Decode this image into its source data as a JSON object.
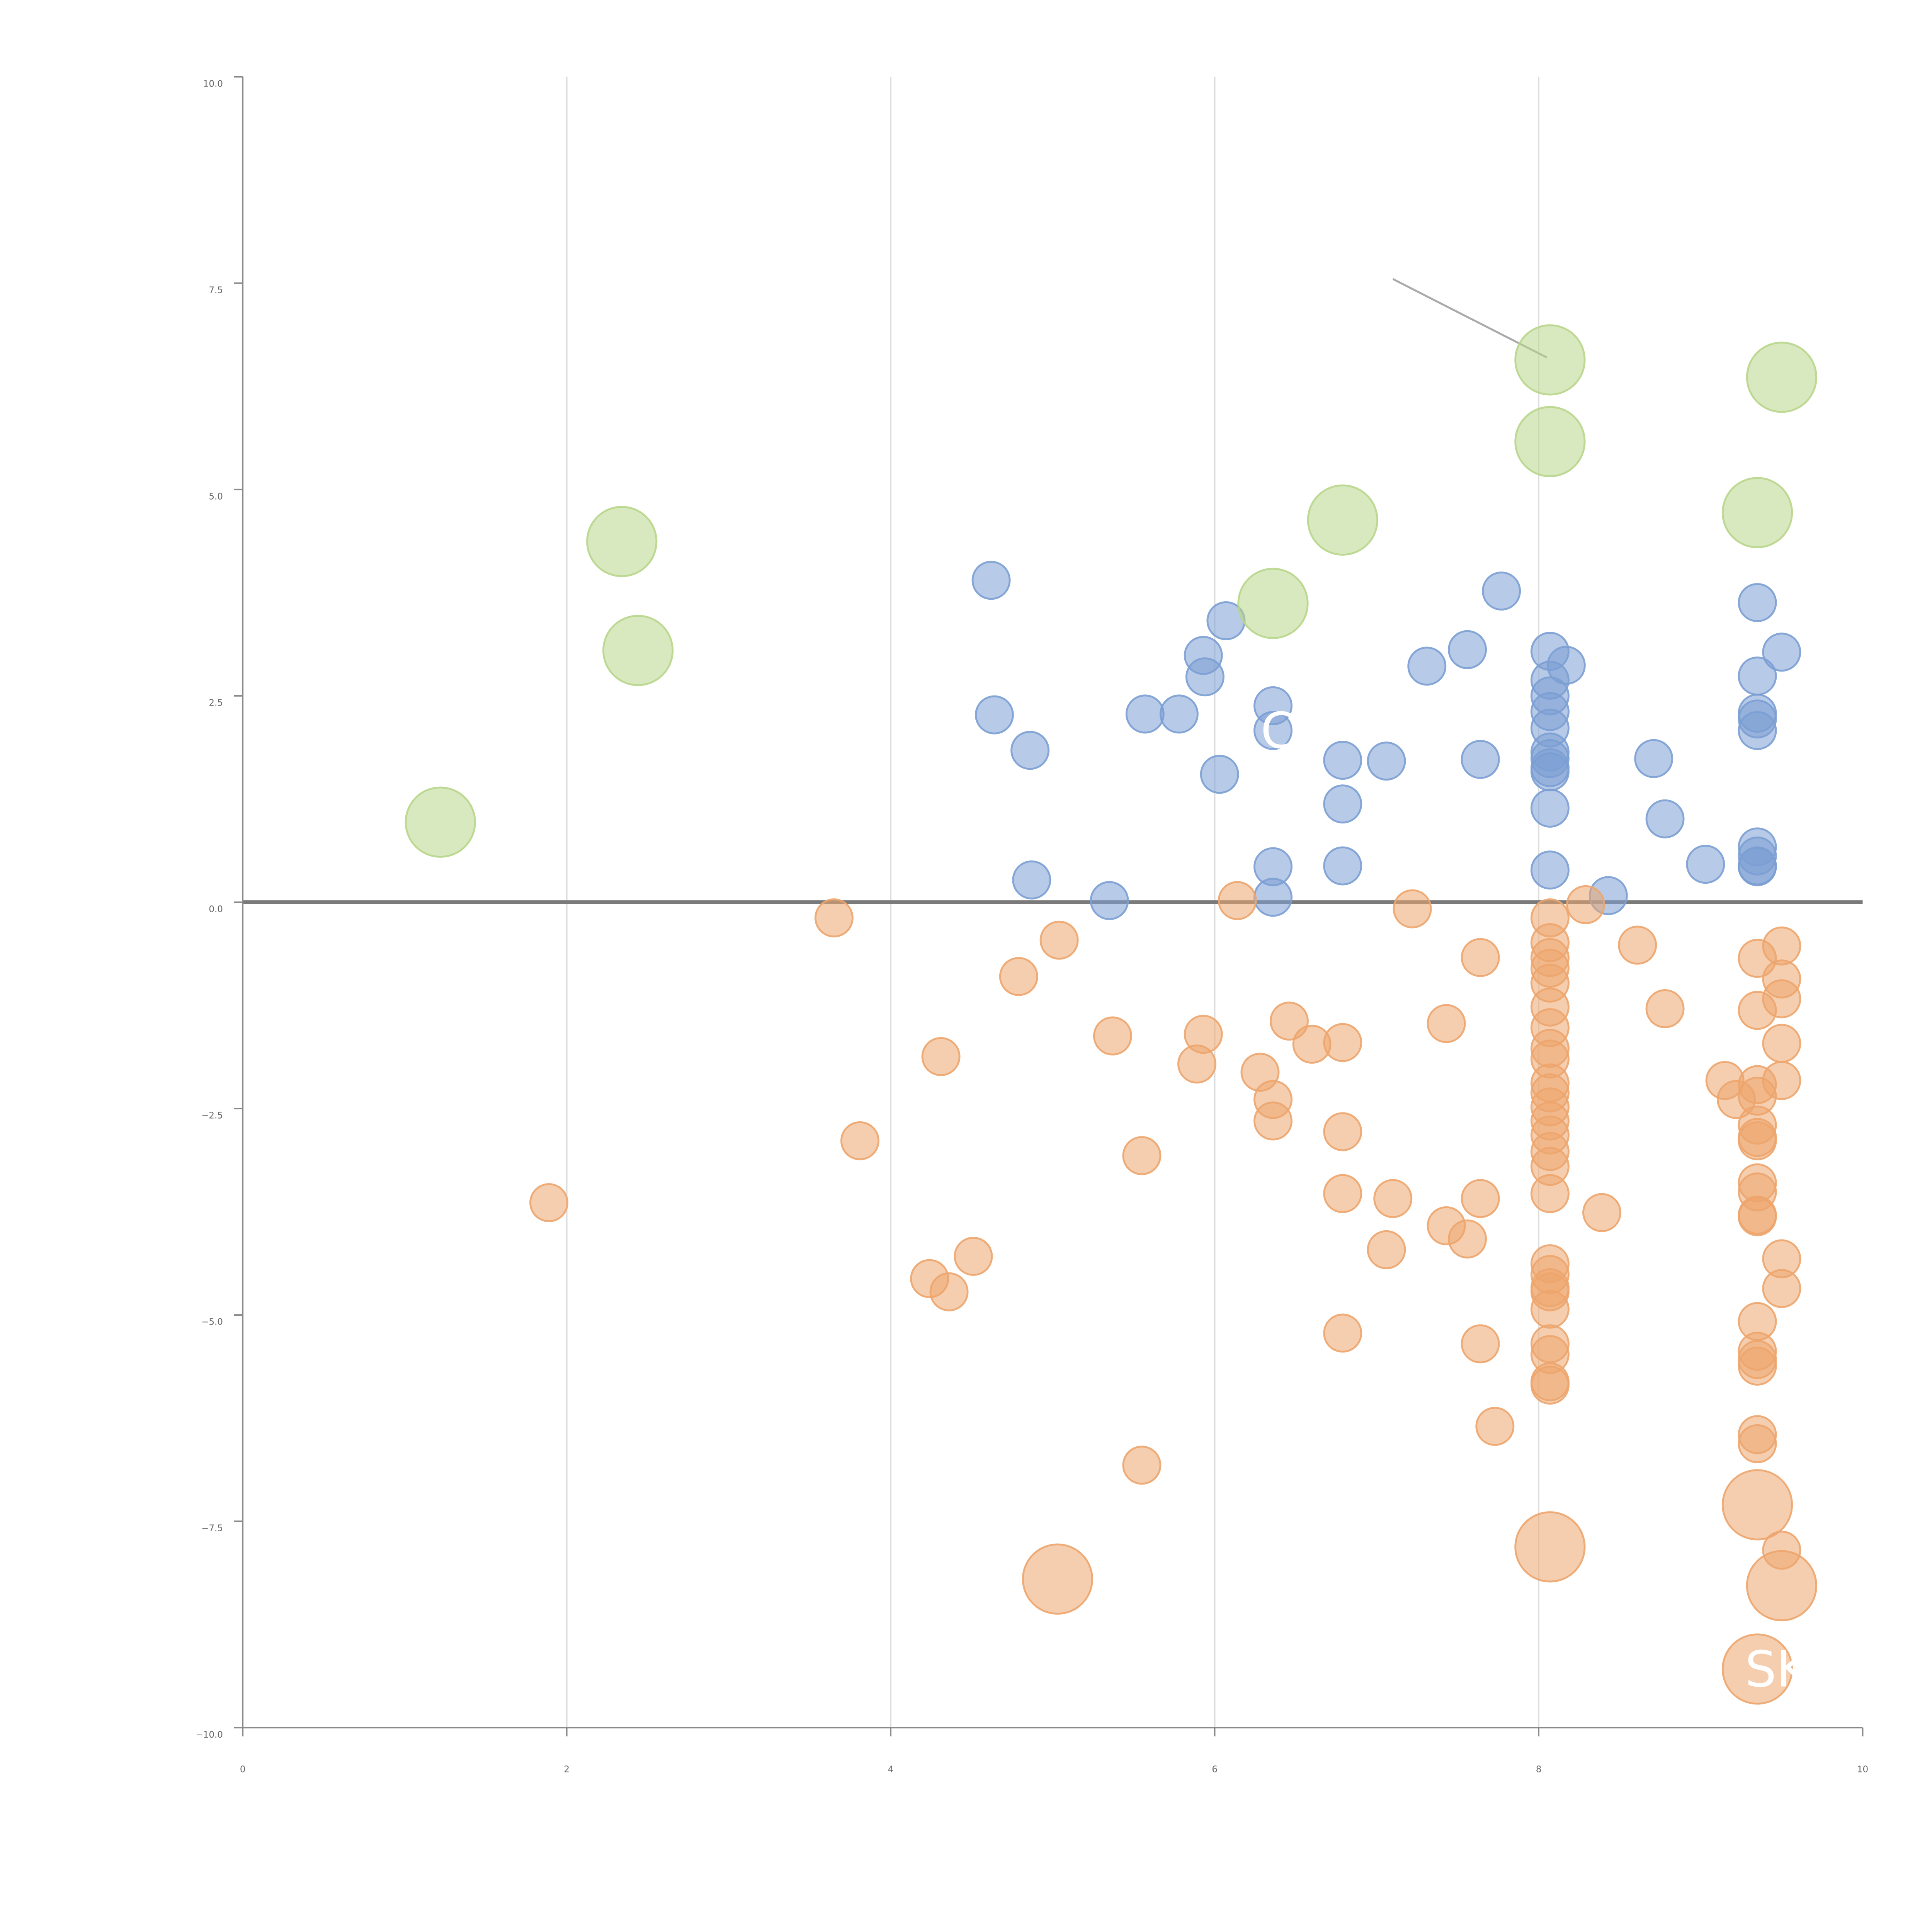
{
  "chart_data": {
    "type": "scatter",
    "xlim": [
      0,
      10
    ],
    "ylim": [
      -10,
      10
    ],
    "x_ticks": [
      "0",
      "2",
      "4",
      "6",
      "8",
      "10"
    ],
    "y_ticks": [
      "10.0",
      "7.5",
      "5.0",
      "2.5",
      "0.0",
      "−2.5",
      "−5.0",
      "−7.5",
      "−10.0"
    ],
    "grid": "vertical",
    "zero_line": true,
    "colors": {
      "blue": "#7b9fd3",
      "orange": "#eda56d",
      "green": "#b8d68b"
    },
    "series": [
      {
        "color": "blue",
        "size": "small",
        "points": [
          [
            4.62,
            3.9
          ],
          [
            4.64,
            2.27
          ],
          [
            4.86,
            1.84
          ],
          [
            4.87,
            0.27
          ],
          [
            5.35,
            0.02
          ],
          [
            5.57,
            2.28
          ],
          [
            5.78,
            2.28
          ],
          [
            5.93,
            2.99
          ],
          [
            5.94,
            2.73
          ],
          [
            6.03,
            1.55
          ],
          [
            6.07,
            3.41
          ],
          [
            6.36,
            2.38
          ],
          [
            6.36,
            2.08
          ],
          [
            6.36,
            0.43
          ],
          [
            6.36,
            0.06
          ],
          [
            6.79,
            1.72
          ],
          [
            6.79,
            1.19
          ],
          [
            6.79,
            0.44
          ],
          [
            7.06,
            1.71
          ],
          [
            7.31,
            2.86
          ],
          [
            7.56,
            3.06
          ],
          [
            7.64,
            1.73
          ],
          [
            7.77,
            3.77
          ],
          [
            8.07,
            3.04
          ],
          [
            8.07,
            2.69
          ],
          [
            8.07,
            2.5
          ],
          [
            8.07,
            2.31
          ],
          [
            8.07,
            2.11
          ],
          [
            8.07,
            1.82
          ],
          [
            8.07,
            1.74
          ],
          [
            8.07,
            1.63
          ],
          [
            8.07,
            1.58
          ],
          [
            8.07,
            1.14
          ],
          [
            8.07,
            0.39
          ],
          [
            8.17,
            2.87
          ],
          [
            8.43,
            0.08
          ],
          [
            8.71,
            1.74
          ],
          [
            8.78,
            1.01
          ],
          [
            9.03,
            0.46
          ],
          [
            9.35,
            3.63
          ],
          [
            9.35,
            2.74
          ],
          [
            9.35,
            2.29
          ],
          [
            9.35,
            2.22
          ],
          [
            9.35,
            2.08
          ],
          [
            9.35,
            0.67
          ],
          [
            9.35,
            0.56
          ],
          [
            9.35,
            0.44
          ],
          [
            9.35,
            0.43
          ],
          [
            9.5,
            3.03
          ]
        ]
      },
      {
        "color": "orange",
        "size": "small",
        "points": [
          [
            1.89,
            -3.64
          ],
          [
            3.65,
            -0.19
          ],
          [
            3.81,
            -2.89
          ],
          [
            4.24,
            -4.56
          ],
          [
            4.31,
            -1.87
          ],
          [
            4.36,
            -4.72
          ],
          [
            4.51,
            -4.29
          ],
          [
            4.79,
            -0.9
          ],
          [
            5.04,
            -0.46
          ],
          [
            5.37,
            -1.62
          ],
          [
            5.55,
            -3.07
          ],
          [
            5.55,
            -6.82
          ],
          [
            5.89,
            -1.96
          ],
          [
            5.93,
            -1.6
          ],
          [
            6.14,
            0.02
          ],
          [
            6.28,
            -2.06
          ],
          [
            6.36,
            -2.39
          ],
          [
            6.36,
            -2.65
          ],
          [
            6.46,
            -1.44
          ],
          [
            6.6,
            -1.72
          ],
          [
            6.79,
            -1.7
          ],
          [
            6.79,
            -2.78
          ],
          [
            6.79,
            -3.53
          ],
          [
            6.79,
            -5.22
          ],
          [
            7.06,
            -4.21
          ],
          [
            7.1,
            -3.59
          ],
          [
            7.22,
            -0.08
          ],
          [
            7.43,
            -1.47
          ],
          [
            7.43,
            -3.92
          ],
          [
            7.56,
            -4.08
          ],
          [
            7.64,
            -0.67
          ],
          [
            7.64,
            -3.59
          ],
          [
            7.64,
            -5.35
          ],
          [
            7.73,
            -6.35
          ],
          [
            8.07,
            -0.19
          ],
          [
            8.07,
            -0.49
          ],
          [
            8.07,
            -0.67
          ],
          [
            8.07,
            -0.8
          ],
          [
            8.07,
            -0.98
          ],
          [
            8.07,
            -1.27
          ],
          [
            8.07,
            -1.52
          ],
          [
            8.07,
            -1.77
          ],
          [
            8.07,
            -1.9
          ],
          [
            8.07,
            -2.19
          ],
          [
            8.07,
            -2.31
          ],
          [
            8.07,
            -2.48
          ],
          [
            8.07,
            -2.65
          ],
          [
            8.07,
            -2.82
          ],
          [
            8.07,
            -3.02
          ],
          [
            8.07,
            -3.2
          ],
          [
            8.07,
            -3.53
          ],
          [
            8.07,
            -4.38
          ],
          [
            8.07,
            -4.51
          ],
          [
            8.07,
            -4.67
          ],
          [
            8.07,
            -4.72
          ],
          [
            8.07,
            -4.93
          ],
          [
            8.07,
            -5.35
          ],
          [
            8.07,
            -5.48
          ],
          [
            8.07,
            -5.81
          ],
          [
            8.07,
            -5.85
          ],
          [
            8.29,
            -0.03
          ],
          [
            8.39,
            -3.76
          ],
          [
            8.61,
            -0.52
          ],
          [
            8.78,
            -1.29
          ],
          [
            9.15,
            -2.16
          ],
          [
            9.22,
            -2.39
          ],
          [
            9.35,
            -0.68
          ],
          [
            9.35,
            -1.31
          ],
          [
            9.35,
            -2.21
          ],
          [
            9.35,
            -2.35
          ],
          [
            9.35,
            -2.7
          ],
          [
            9.35,
            -2.85
          ],
          [
            9.35,
            -2.89
          ],
          [
            9.35,
            -3.4
          ],
          [
            9.35,
            -3.51
          ],
          [
            9.35,
            -3.79
          ],
          [
            9.35,
            -3.81
          ],
          [
            9.35,
            -5.08
          ],
          [
            9.35,
            -5.44
          ],
          [
            9.35,
            -5.54
          ],
          [
            9.35,
            -5.62
          ],
          [
            9.35,
            -6.45
          ],
          [
            9.35,
            -6.56
          ],
          [
            9.5,
            -0.53
          ],
          [
            9.5,
            -0.93
          ],
          [
            9.5,
            -1.17
          ],
          [
            9.5,
            -1.71
          ],
          [
            9.5,
            -2.16
          ],
          [
            9.5,
            -4.32
          ],
          [
            9.5,
            -4.68
          ],
          [
            9.5,
            -7.85
          ]
        ]
      },
      {
        "color": "orange",
        "size": "large",
        "points": [
          [
            5.03,
            -8.2
          ],
          [
            8.07,
            -7.81
          ],
          [
            9.35,
            -7.3
          ],
          [
            9.5,
            -8.28
          ],
          [
            9.35,
            -9.29
          ]
        ]
      },
      {
        "color": "green",
        "size": "large",
        "points": [
          [
            1.22,
            0.97
          ],
          [
            2.34,
            4.37
          ],
          [
            2.44,
            3.05
          ],
          [
            6.36,
            3.62
          ],
          [
            6.79,
            4.63
          ],
          [
            8.07,
            6.57
          ],
          [
            8.07,
            5.58
          ],
          [
            9.35,
            4.72
          ],
          [
            9.5,
            6.36
          ]
        ]
      }
    ],
    "annotations": [
      {
        "text": "CZ",
        "x": 6.36,
        "y": 2.08
      },
      {
        "text": "SK",
        "x": 9.35,
        "y": -9.29
      }
    ]
  }
}
